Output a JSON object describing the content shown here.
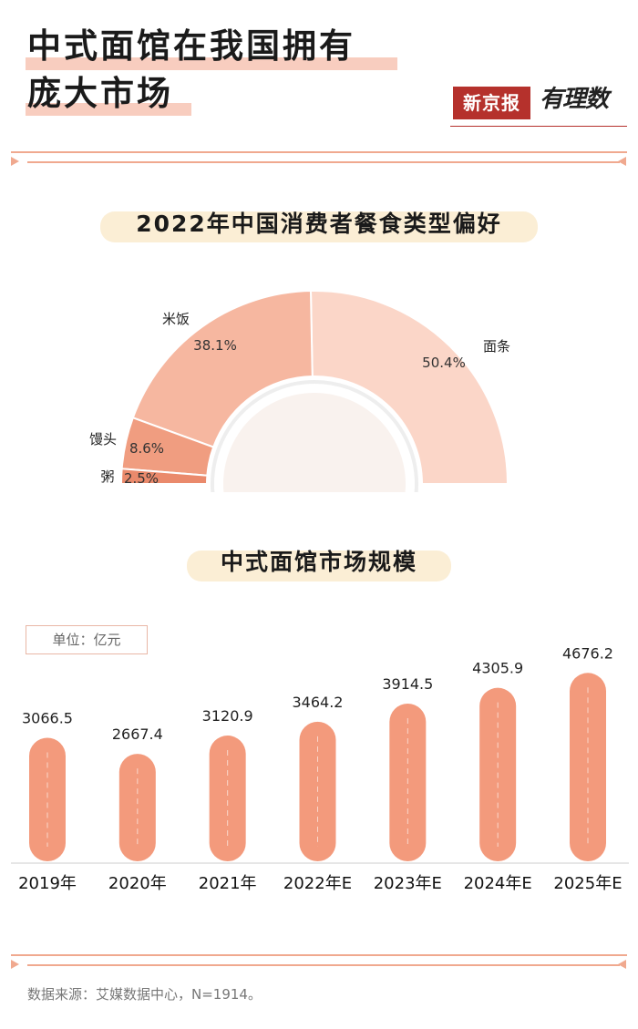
{
  "header": {
    "title_line1": "中式面馆在我国拥有",
    "title_line2": "庞大市场",
    "logo_brand": "新京报",
    "logo_script": "有理数"
  },
  "colors": {
    "accent": "#f0a98f",
    "bar": "#f39a7c",
    "pie_noodle": "#fbd6c8",
    "pie_rice": "#f6b7a0",
    "pie_mantou": "#f09d80",
    "pie_congee": "#ea8a6c",
    "highlight": "#f8cdbf",
    "pill": "#fbeed5"
  },
  "chart_data": [
    {
      "type": "pie",
      "variant": "half-donut",
      "title": "2022年中国消费者餐食类型偏好",
      "slices": [
        {
          "label": "面条",
          "value": 50.4,
          "value_label": "50.4%"
        },
        {
          "label": "米饭",
          "value": 38.1,
          "value_label": "38.1%"
        },
        {
          "label": "馒头",
          "value": 8.6,
          "value_label": "8.6%"
        },
        {
          "label": "粥",
          "value": 2.5,
          "value_label": "2.5%"
        }
      ]
    },
    {
      "type": "bar",
      "title": "中式面馆市场规模",
      "unit_label": "单位：亿元",
      "categories": [
        "2019年",
        "2020年",
        "2021年",
        "2022年E",
        "2023年E",
        "2024年E",
        "2025年E"
      ],
      "values": [
        3066.5,
        2667.4,
        3120.9,
        3464.2,
        3914.5,
        4305.9,
        4676.2
      ],
      "value_labels": [
        "3066.5",
        "2667.4",
        "3120.9",
        "3464.2",
        "3914.5",
        "4305.9",
        "4676.2"
      ]
    }
  ],
  "footer": {
    "source": "数据来源：艾媒数据中心，N=1914。"
  }
}
